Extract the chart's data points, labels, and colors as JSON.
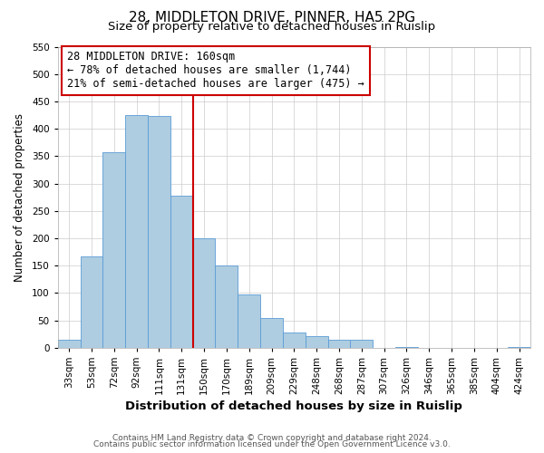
{
  "title": "28, MIDDLETON DRIVE, PINNER, HA5 2PG",
  "subtitle": "Size of property relative to detached houses in Ruislip",
  "xlabel": "Distribution of detached houses by size in Ruislip",
  "ylabel": "Number of detached properties",
  "categories": [
    "33sqm",
    "53sqm",
    "72sqm",
    "92sqm",
    "111sqm",
    "131sqm",
    "150sqm",
    "170sqm",
    "189sqm",
    "209sqm",
    "229sqm",
    "248sqm",
    "268sqm",
    "287sqm",
    "307sqm",
    "326sqm",
    "346sqm",
    "365sqm",
    "385sqm",
    "404sqm",
    "424sqm"
  ],
  "values": [
    15,
    167,
    357,
    425,
    424,
    277,
    200,
    150,
    97,
    55,
    28,
    22,
    14,
    14,
    0,
    2,
    0,
    0,
    0,
    0,
    2
  ],
  "bar_color": "#aecde1",
  "bar_edge_color": "#5b9bd5",
  "vline_x_index": 6,
  "vline_color": "#cc0000",
  "annotation_line1": "28 MIDDLETON DRIVE: 160sqm",
  "annotation_line2": "← 78% of detached houses are smaller (1,744)",
  "annotation_line3": "21% of semi-detached houses are larger (475) →",
  "annotation_box_color": "#cc0000",
  "annotation_text_color": "#000000",
  "ylim": [
    0,
    550
  ],
  "yticks": [
    0,
    50,
    100,
    150,
    200,
    250,
    300,
    350,
    400,
    450,
    500,
    550
  ],
  "footer1": "Contains HM Land Registry data © Crown copyright and database right 2024.",
  "footer2": "Contains public sector information licensed under the Open Government Licence v3.0.",
  "background_color": "#ffffff",
  "grid_color": "#cccccc",
  "title_fontsize": 11,
  "subtitle_fontsize": 9.5,
  "xlabel_fontsize": 9.5,
  "ylabel_fontsize": 8.5,
  "tick_fontsize": 7.5,
  "annotation_fontsize": 8.5,
  "footer_fontsize": 6.5
}
